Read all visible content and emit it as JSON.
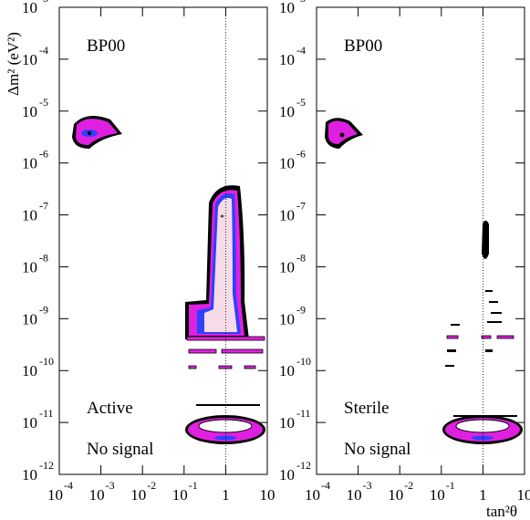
{
  "chart_data": [
    {
      "type": "contour",
      "log_x": true,
      "log_y": true,
      "xlim": [
        0.0001,
        10
      ],
      "ylim": [
        1e-12,
        0.001
      ],
      "xticks": [
        {
          "value": 0.0001,
          "label": "10",
          "sup": "-4"
        },
        {
          "value": 0.001,
          "label": "10",
          "sup": "-3"
        },
        {
          "value": 0.01,
          "label": "10",
          "sup": "-2"
        },
        {
          "value": 0.1,
          "label": "10",
          "sup": "-1"
        },
        1,
        10
      ],
      "yticks": [
        {
          "value": 1e-12,
          "label": "10",
          "sup": "-12"
        },
        {
          "value": 1e-11,
          "label": "10",
          "sup": "-11"
        },
        {
          "value": 1e-10,
          "label": "10",
          "sup": "-10"
        },
        {
          "value": 1e-09,
          "label": "10",
          "sup": "-9"
        },
        {
          "value": 1e-08,
          "label": "10",
          "sup": "-8"
        },
        {
          "value": 1e-07,
          "label": "10",
          "sup": "-7"
        },
        {
          "value": 1e-06,
          "label": "10",
          "sup": "-6"
        },
        {
          "value": 1e-05,
          "label": "10",
          "sup": "-5"
        },
        {
          "value": 0.0001,
          "label": "10",
          "sup": "-4"
        },
        {
          "value": 0.001,
          "label": "10",
          "sup": "-3"
        }
      ],
      "ylabel": "Δm² (eV²)",
      "reference_x": 1,
      "annotations": [
        "BP00",
        "Active",
        "No signal"
      ]
    },
    {
      "type": "contour",
      "log_x": true,
      "log_y": true,
      "xlim": [
        0.0001,
        10
      ],
      "ylim": [
        1e-12,
        0.001
      ],
      "xticks": [
        {
          "value": 0.0001,
          "label": "10",
          "sup": "-4"
        },
        {
          "value": 0.001,
          "label": "10",
          "sup": "-3"
        },
        {
          "value": 0.01,
          "label": "10",
          "sup": "-2"
        },
        {
          "value": 0.1,
          "label": "10",
          "sup": "-1"
        },
        1,
        10
      ],
      "yticks": [
        {
          "value": 1e-12,
          "label": "10",
          "sup": "-12"
        },
        {
          "value": 1e-11,
          "label": "10",
          "sup": "-11"
        },
        {
          "value": 1e-10,
          "label": "10",
          "sup": "-10"
        },
        {
          "value": 1e-09,
          "label": "10",
          "sup": "-9"
        },
        {
          "value": 1e-08,
          "label": "10",
          "sup": "-8"
        },
        {
          "value": 1e-07,
          "label": "10",
          "sup": "-7"
        },
        {
          "value": 1e-06,
          "label": "10",
          "sup": "-6"
        },
        {
          "value": 1e-05,
          "label": "10",
          "sup": "-5"
        },
        {
          "value": 0.0001,
          "label": "10",
          "sup": "-4"
        },
        {
          "value": 0.001,
          "label": "10",
          "sup": "-3"
        }
      ],
      "xlabel": "tan²θ",
      "reference_x": 1,
      "annotations": [
        "BP00",
        "Sterile",
        "No signal"
      ]
    }
  ]
}
